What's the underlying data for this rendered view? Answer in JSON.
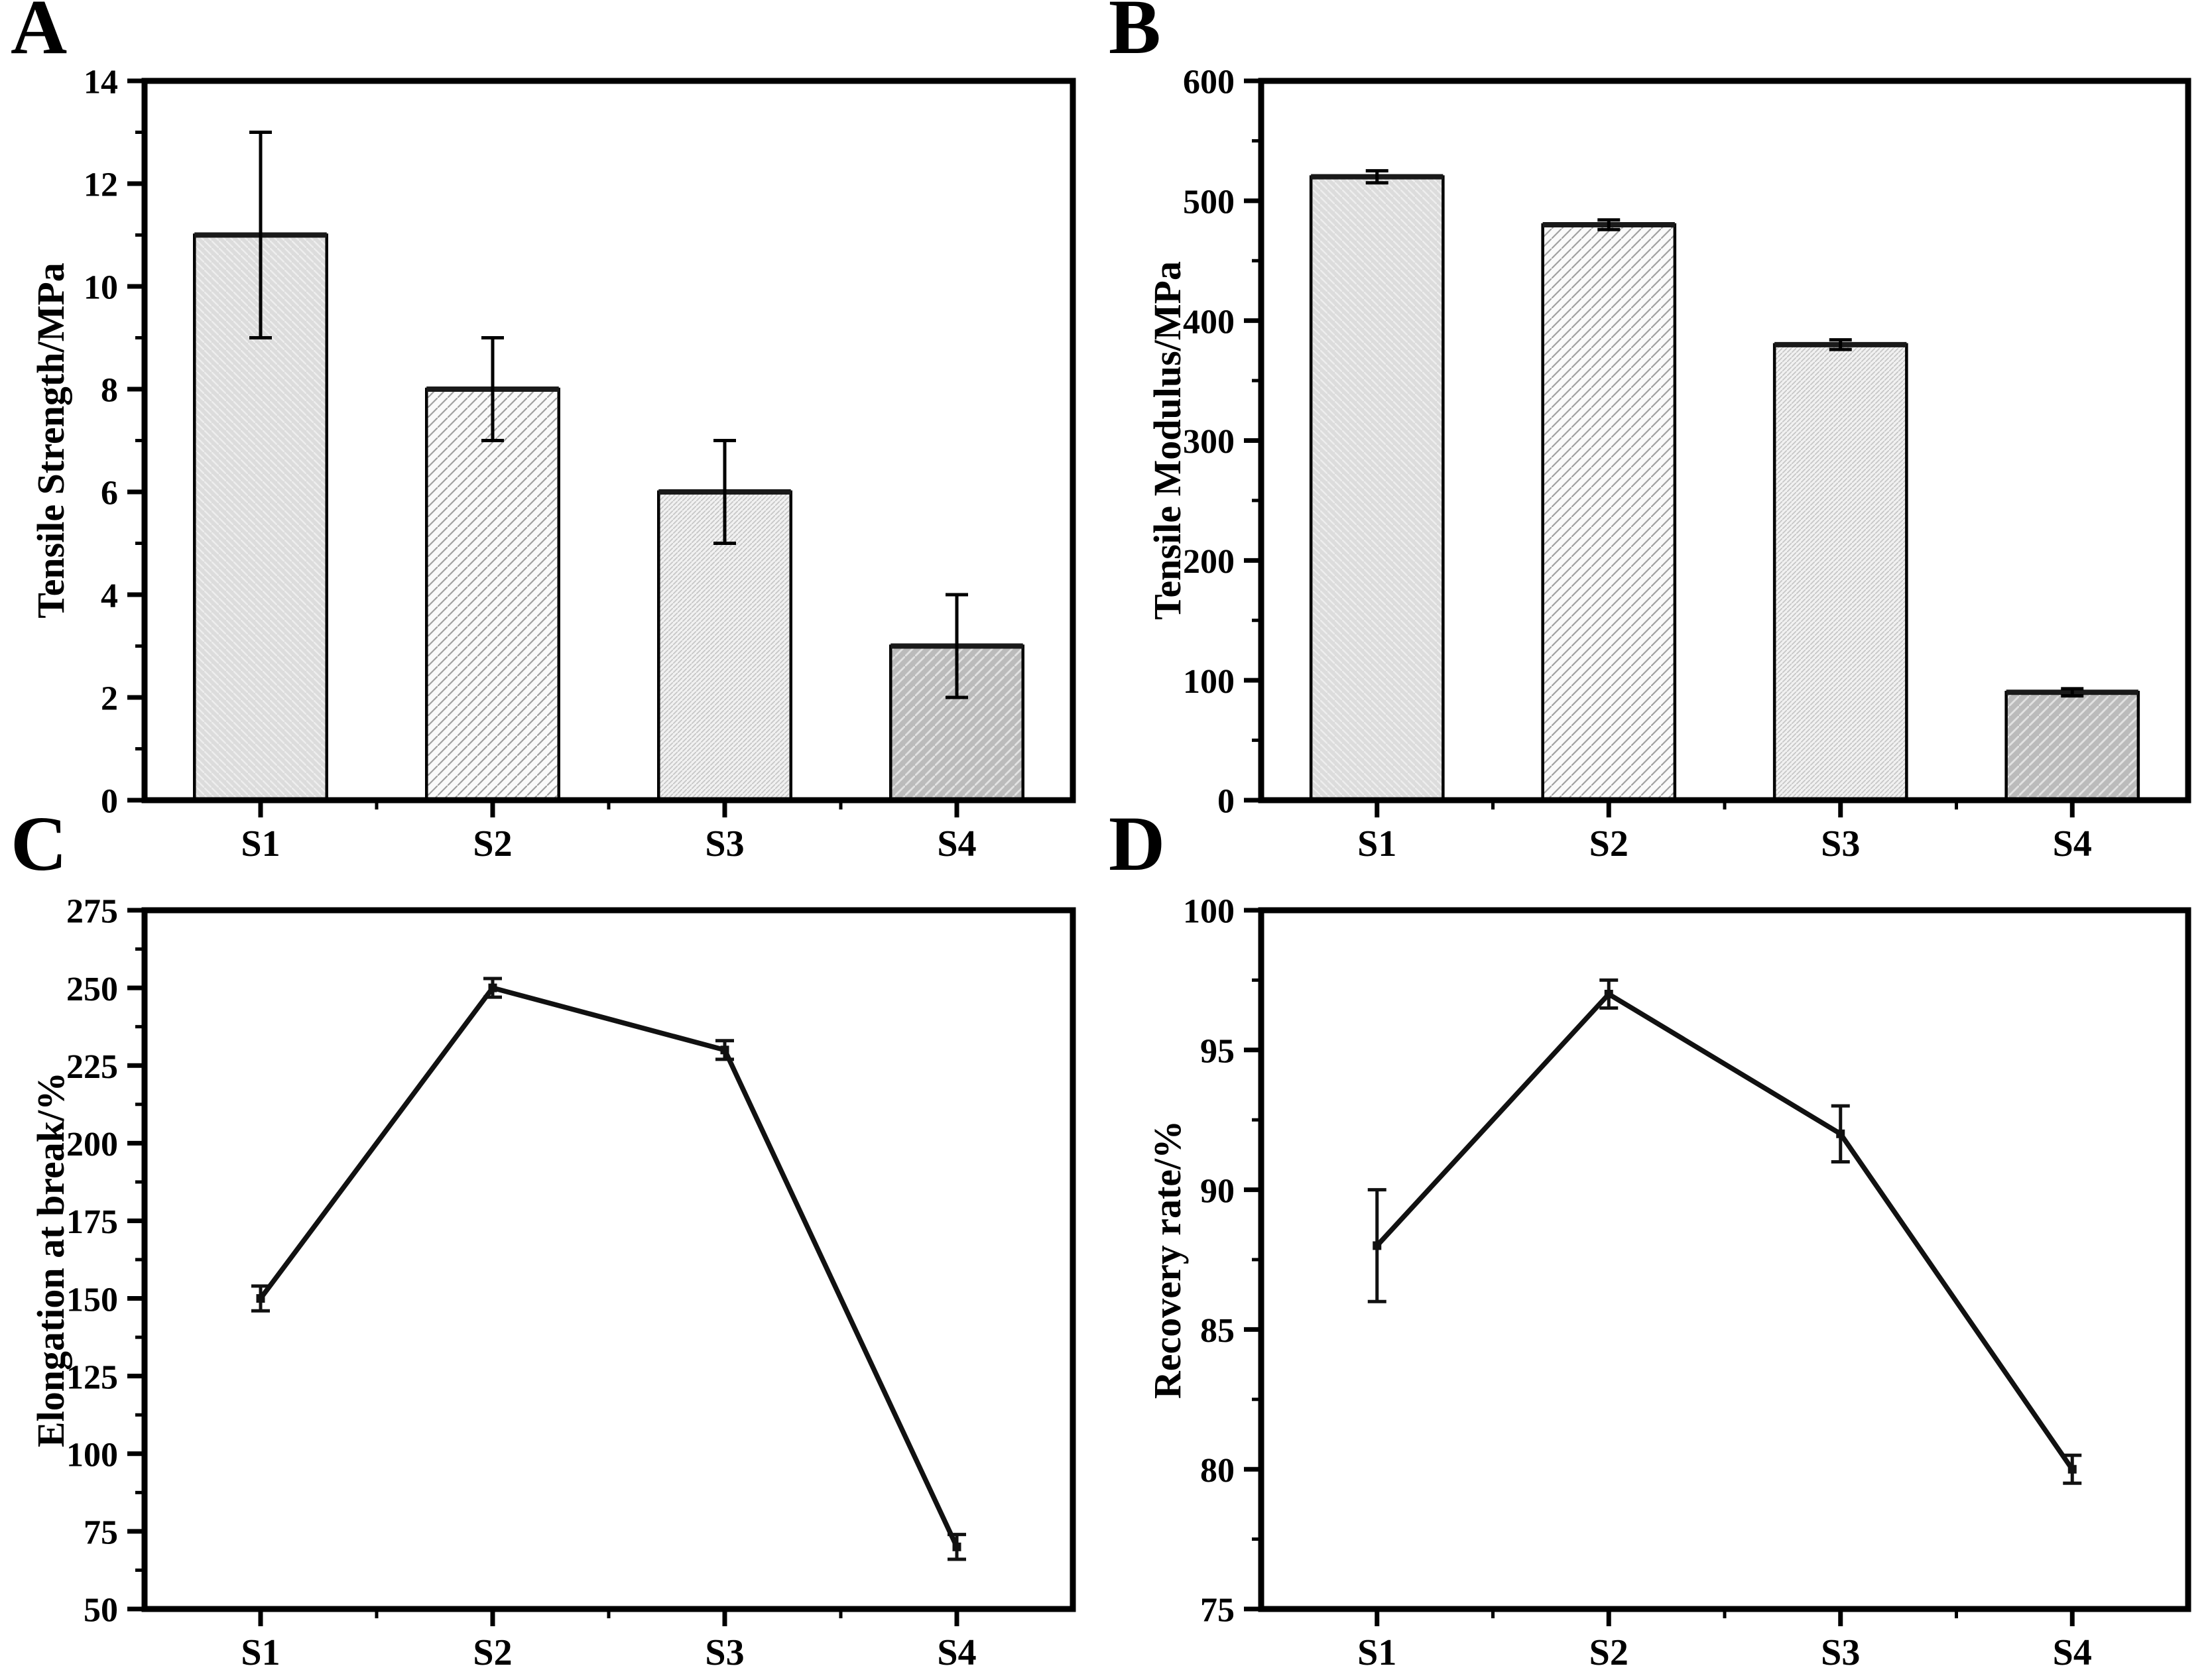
{
  "figure": {
    "background": "#ffffff",
    "panels": [
      {
        "letter": "A"
      },
      {
        "letter": "B"
      },
      {
        "letter": "C"
      },
      {
        "letter": "D"
      }
    ]
  },
  "styles": {
    "axis_color": "#000000",
    "text_color": "#000000",
    "line_color": "#111111",
    "bar_top_edge_color": "#1a1a1a",
    "bar_patterns": [
      {
        "name": "diagonal-backslash-on-lightgray",
        "tile": 11,
        "base": "#dcdcdc",
        "hatch": "#eeeeee",
        "line_width": 2.4,
        "direction": "\\"
      },
      {
        "name": "diagonal-slash-on-white",
        "tile": 15,
        "base": "#fafafa",
        "hatch": "#a0a0a0",
        "line_width": 2.2,
        "direction": "/"
      },
      {
        "name": "fine-diagonal-dots-on-lightgray",
        "tile": 7,
        "base": "#f1f1f1",
        "hatch": "#c6c6c6",
        "line_width": 1.7,
        "direction": "/"
      },
      {
        "name": "diagonal-slash-on-gray",
        "tile": 15,
        "base": "#bbbbbb",
        "hatch": "#e2e2e2",
        "line_width": 2.8,
        "direction": "/"
      }
    ]
  },
  "chart_data": [
    {
      "panel": "A",
      "type": "bar",
      "title": "",
      "xlabel": "",
      "ylabel": "Tensile Strength/MPa",
      "categories": [
        "S1",
        "S2",
        "S3",
        "S4"
      ],
      "values": [
        11,
        8,
        6,
        3
      ],
      "errors": [
        2,
        1,
        1,
        1
      ],
      "ylim": [
        0,
        14
      ],
      "yticks": [
        0,
        2,
        4,
        6,
        8,
        10,
        12,
        14
      ],
      "ytick_minor_step": 1,
      "grid": false,
      "legend": "none"
    },
    {
      "panel": "B",
      "type": "bar",
      "title": "",
      "xlabel": "",
      "ylabel": "Tensile Modulus/MPa",
      "categories": [
        "S1",
        "S2",
        "S3",
        "S4"
      ],
      "values": [
        520,
        480,
        380,
        90
      ],
      "errors": [
        5,
        4,
        4,
        3
      ],
      "ylim": [
        0,
        600
      ],
      "yticks": [
        0,
        100,
        200,
        300,
        400,
        500,
        600
      ],
      "ytick_minor_step": 50,
      "grid": false,
      "legend": "none"
    },
    {
      "panel": "C",
      "type": "line",
      "title": "",
      "xlabel": "",
      "ylabel": "Elongation at break/%",
      "categories": [
        "S1",
        "S2",
        "S3",
        "S4"
      ],
      "values": [
        150,
        250,
        230,
        70
      ],
      "errors": [
        4,
        3,
        3,
        4
      ],
      "ylim": [
        50,
        275
      ],
      "yticks": [
        50,
        75,
        100,
        125,
        150,
        175,
        200,
        225,
        250,
        275
      ],
      "ytick_minor_step": 12.5,
      "grid": false,
      "legend": "none"
    },
    {
      "panel": "D",
      "type": "line",
      "title": "",
      "xlabel": "",
      "ylabel": "Recovery rate/%",
      "categories": [
        "S1",
        "S2",
        "S3",
        "S4"
      ],
      "values": [
        88,
        97,
        92,
        80
      ],
      "errors": [
        2,
        0.5,
        1,
        0.5
      ],
      "ylim": [
        75,
        100
      ],
      "yticks": [
        75,
        80,
        85,
        90,
        95,
        100
      ],
      "ytick_minor_step": 2.5,
      "grid": false,
      "legend": "none"
    }
  ]
}
